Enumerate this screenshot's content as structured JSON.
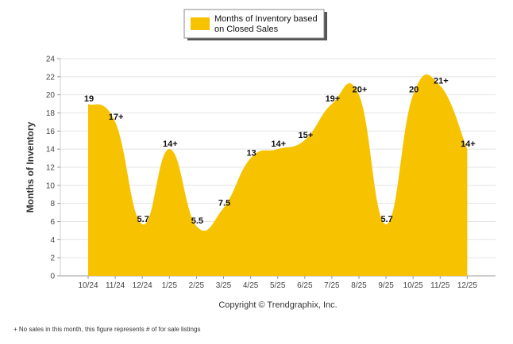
{
  "chart_data": {
    "type": "area",
    "categories": [
      "10/24",
      "11/24",
      "12/24",
      "1/25",
      "2/25",
      "3/25",
      "4/25",
      "5/25",
      "6/25",
      "7/25",
      "8/25",
      "9/25",
      "10/25",
      "11/25",
      "12/25"
    ],
    "values": [
      19,
      17,
      5.7,
      14,
      5.5,
      7.5,
      13,
      14,
      15,
      19,
      20,
      5.7,
      20,
      21,
      14
    ],
    "data_labels": [
      "19",
      "17+",
      "5.7",
      "14+",
      "5.5",
      "7.5",
      "13",
      "14+",
      "15+",
      "19+",
      "20+",
      "5.7",
      "20",
      "21+",
      "14+"
    ],
    "series": [
      {
        "name": "Months of Inventory based on Closed Sales",
        "color": "#f7c200"
      }
    ],
    "ylabel": "Months of Inventory",
    "ylim": [
      0,
      24
    ],
    "yticks": [
      0,
      2,
      4,
      6,
      8,
      10,
      12,
      14,
      16,
      18,
      20,
      22,
      24
    ],
    "grid": true,
    "legend_position": "top-center"
  },
  "legend": {
    "line1": "Months of Inventory based",
    "line2": "on Closed Sales"
  },
  "credit": "Copyright © Trendgraphix, Inc.",
  "footnote": "+  No sales in this month, this figure represents # of for sale listings"
}
